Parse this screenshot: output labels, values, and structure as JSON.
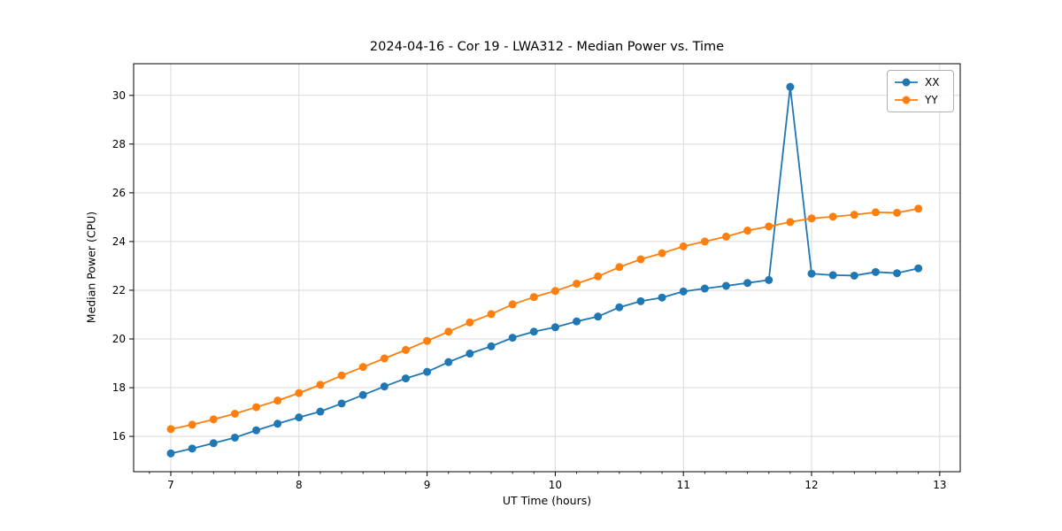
{
  "chart_data": {
    "type": "line",
    "title": "2024-04-16 - Cor 19 - LWA312 - Median Power vs. Time",
    "xlabel": "UT Time (hours)",
    "ylabel": "Median Power (CPU)",
    "xlim": [
      6.71,
      13.16
    ],
    "ylim": [
      14.55,
      31.3
    ],
    "xticks": [
      7,
      8,
      9,
      10,
      11,
      12,
      13
    ],
    "yticks": [
      16,
      18,
      20,
      22,
      24,
      26,
      28,
      30
    ],
    "x_minor_tick_step": 0.16667,
    "grid": true,
    "grid_color": "#d9d9d9",
    "legend_position": "upper right",
    "marker": "circle",
    "x": [
      7.0,
      7.1667,
      7.3333,
      7.5,
      7.6667,
      7.8333,
      8.0,
      8.1667,
      8.3333,
      8.5,
      8.6667,
      8.8333,
      9.0,
      9.1667,
      9.3333,
      9.5,
      9.6667,
      9.8333,
      10.0,
      10.1667,
      10.3333,
      10.5,
      10.6667,
      10.8333,
      11.0,
      11.1667,
      11.3333,
      11.5,
      11.6667,
      11.8333,
      12.0,
      12.1667,
      12.3333,
      12.5,
      12.6667,
      12.8333
    ],
    "series": [
      {
        "name": "XX",
        "color": "#1f77b4",
        "values": [
          15.3,
          15.5,
          15.72,
          15.95,
          16.25,
          16.52,
          16.78,
          17.02,
          17.35,
          17.7,
          18.05,
          18.38,
          18.65,
          19.05,
          19.4,
          19.7,
          20.05,
          20.3,
          20.48,
          20.72,
          20.92,
          21.3,
          21.55,
          21.7,
          21.95,
          22.07,
          22.18,
          22.3,
          22.42,
          30.35,
          22.68,
          22.62,
          22.6,
          22.75,
          22.7,
          22.9
        ]
      },
      {
        "name": "YY",
        "color": "#ff7f0e",
        "values": [
          16.3,
          16.48,
          16.7,
          16.93,
          17.2,
          17.47,
          17.78,
          18.12,
          18.5,
          18.85,
          19.2,
          19.55,
          19.92,
          20.3,
          20.68,
          21.02,
          21.42,
          21.72,
          21.97,
          22.27,
          22.57,
          22.95,
          23.27,
          23.52,
          23.8,
          24.0,
          24.2,
          24.45,
          24.62,
          24.8,
          24.95,
          25.02,
          25.1,
          25.2,
          25.18,
          25.35
        ]
      }
    ]
  }
}
